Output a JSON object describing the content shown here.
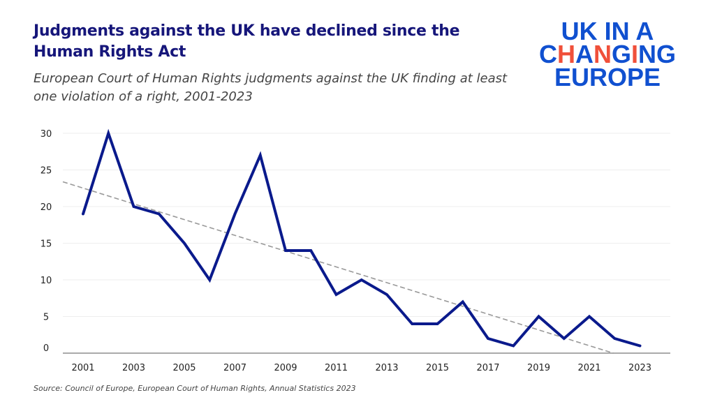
{
  "header": {
    "title": "Judgments against the UK have declined since the Human Rights Act",
    "subtitle": "European Court of Human Rights judgments against the UK finding at least one violation of a right, 2001-2023"
  },
  "logo": {
    "line1": "UK IN A",
    "line2": "CHANGING",
    "line3": "EUROPE",
    "colors": {
      "blue": "#1050d0",
      "accent": "#f0503a"
    }
  },
  "source": "Source: Council of Europe, European Court of Human Rights, Annual Statistics 2023",
  "chart_data": {
    "type": "line",
    "title": "Judgments against the UK have declined since the Human Rights Act",
    "xlabel": "",
    "ylabel": "",
    "x": [
      2001,
      2002,
      2003,
      2004,
      2005,
      2006,
      2007,
      2008,
      2009,
      2010,
      2011,
      2012,
      2013,
      2014,
      2015,
      2016,
      2017,
      2018,
      2019,
      2020,
      2021,
      2022,
      2023
    ],
    "series": [
      {
        "values": [
          19,
          30,
          20,
          19,
          15,
          10,
          19,
          27,
          14,
          14,
          8,
          10,
          8,
          4,
          4,
          7,
          2,
          1,
          5,
          2,
          5,
          2,
          1
        ],
        "color": "#0a1a8c"
      }
    ],
    "trendline": {
      "type": "linear",
      "style": "dashed",
      "color": "#999999"
    },
    "xticks": [
      "2001",
      "2003",
      "2005",
      "2007",
      "2009",
      "2011",
      "2013",
      "2015",
      "2017",
      "2019",
      "2021",
      "2023"
    ],
    "yticks": [
      "0",
      "5",
      "10",
      "15",
      "20",
      "25",
      "30"
    ],
    "ylim": [
      0,
      30
    ],
    "xlim": [
      2000.2,
      2024.2
    ],
    "grid": "horizontal",
    "legend": "none"
  }
}
